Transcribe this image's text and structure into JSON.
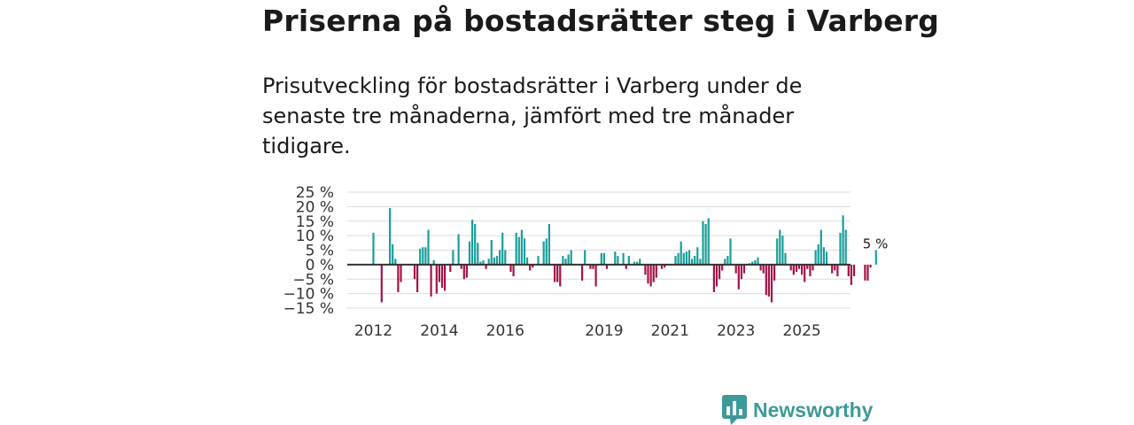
{
  "title": "Priserna på bostadsrätter steg i Varberg",
  "subtitle": "Prisutveckling för bostadsrätter i Varberg under de senaste tre månaderna, jämfört med tre månader tidigare.",
  "brand": "Newsworthy",
  "colors": {
    "positive": "#1a9e9b",
    "negative": "#a4124a",
    "brand": "#3d9a98",
    "grid": "#dcdcdc",
    "zero": "#333333"
  },
  "chart_data": {
    "type": "bar",
    "title": "Priserna på bostadsrätter steg i Varberg",
    "xlabel": "",
    "ylabel": "",
    "ylim": [
      -15,
      25
    ],
    "y_ticks": [
      25,
      20,
      15,
      10,
      5,
      0,
      -5,
      -10,
      -15
    ],
    "y_tick_labels": [
      "25 %",
      "20 %",
      "15 %",
      "10 %",
      "5 %",
      "0 %",
      "−5 %",
      "−10 %",
      "−15 %"
    ],
    "x_tick_labels": [
      "2012",
      "2014",
      "2016",
      "2019",
      "2021",
      "2023",
      "2025"
    ],
    "start": "2012-01",
    "frequency": "monthly",
    "annotation": "5 %",
    "values": [
      11,
      0,
      0,
      -13,
      0,
      0,
      19.5,
      7,
      2,
      -9.5,
      -6,
      0,
      0,
      0,
      0,
      -5,
      -9.5,
      5.5,
      6,
      6,
      12,
      -11,
      1.5,
      -10,
      -6,
      -8,
      -9,
      0,
      -2.5,
      5,
      0,
      10.5,
      -1.5,
      -5,
      -4.5,
      8,
      15.5,
      14,
      7.5,
      1,
      1.5,
      -1.5,
      2,
      8.5,
      2.5,
      3,
      5,
      11,
      5,
      0,
      -2.5,
      -4,
      11,
      9.5,
      12,
      9,
      2.5,
      -2,
      -1,
      0,
      3,
      0,
      8,
      9,
      14,
      0,
      -6,
      -6,
      -7.5,
      3,
      2,
      3.5,
      5,
      0,
      0,
      0,
      -5.5,
      5,
      0,
      -1.5,
      -1.5,
      -7.5,
      0,
      4,
      4,
      -1.5,
      0,
      0,
      4.5,
      3,
      0,
      4,
      -1.5,
      3,
      0,
      1,
      1,
      2,
      0,
      -3.5,
      -6.5,
      -7.5,
      -6,
      -4.5,
      0,
      -1.5,
      -1,
      0,
      0,
      0,
      3,
      4,
      8,
      4,
      4.5,
      5,
      2,
      3,
      6,
      2,
      15,
      14,
      16,
      0,
      -9.5,
      -7.5,
      -5,
      -2,
      2,
      3,
      9,
      0,
      -3,
      -8.5,
      -5,
      -3,
      0,
      0.5,
      1,
      1.5,
      2.5,
      -2,
      -3,
      -10.5,
      -11,
      -13,
      -5.5,
      9,
      12,
      10,
      4,
      0,
      -2,
      -3.5,
      -2.5,
      -1.5,
      -3.5,
      -6,
      -1.5,
      -4,
      -2,
      5,
      7,
      12,
      6,
      4.5,
      0,
      -3,
      -2,
      -4,
      11,
      17,
      12,
      -4,
      -7,
      -4,
      0,
      0,
      0,
      -5.5,
      -5.5,
      -1,
      0,
      5
    ]
  }
}
